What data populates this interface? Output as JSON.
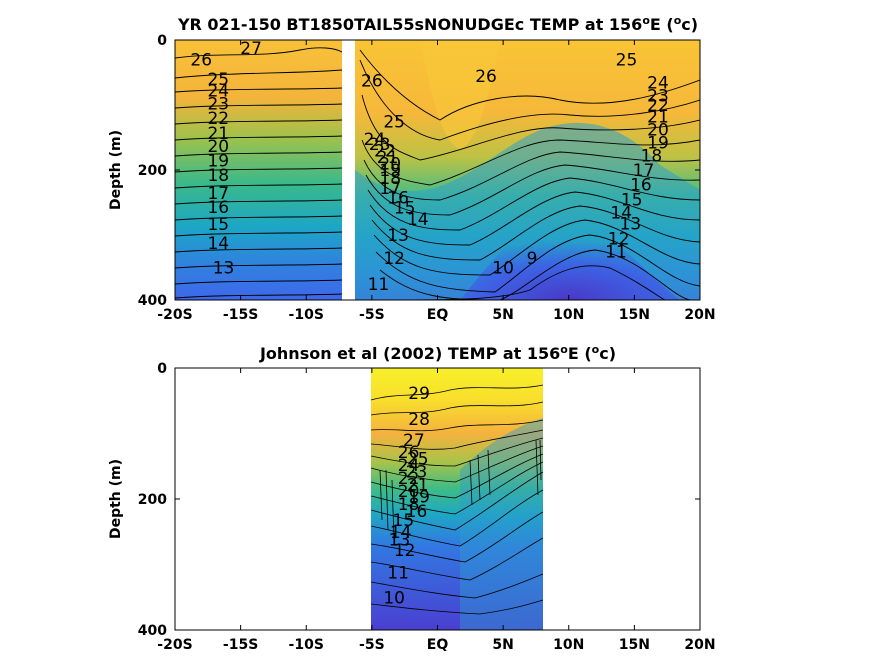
{
  "chart_data": [
    {
      "type": "heatmap",
      "subtype": "filled-contour",
      "title": "YR 021-150 BT1850TAIL55sNONUDGEc TEMP at 156°E (°c)",
      "title_parts": {
        "main": "YR 021-150 BT1850TAIL55sNONUDGEc TEMP at 156",
        "sup1": "o",
        "mid": "E (",
        "sup2": "o",
        "end": "c)"
      },
      "ylabel": "Depth (m)",
      "xlabel": "",
      "x_ticks": [
        -20,
        -15,
        -10,
        -5,
        0,
        5,
        10,
        15,
        20
      ],
      "x_tick_labels": [
        "-20S",
        "-15S",
        "-10S",
        "-5S",
        "EQ",
        "5N",
        "10N",
        "15N",
        "20N"
      ],
      "y_ticks": [
        0,
        200,
        400
      ],
      "y_tick_labels": [
        "0",
        "200",
        "400"
      ],
      "xlim": [
        -20,
        20
      ],
      "ylim": [
        400,
        0
      ],
      "y_reversed": true,
      "data_gap_x": [
        -7.8,
        -6.8
      ],
      "contour_interval": 1,
      "contour_labels": [
        {
          "text": "27",
          "x": -14.2,
          "y": 12
        },
        {
          "text": "26",
          "x": -18.0,
          "y": 30
        },
        {
          "text": "25",
          "x": -16.7,
          "y": 60
        },
        {
          "text": "24",
          "x": -16.7,
          "y": 78
        },
        {
          "text": "23",
          "x": -16.7,
          "y": 98
        },
        {
          "text": "22",
          "x": -16.7,
          "y": 120
        },
        {
          "text": "21",
          "x": -16.7,
          "y": 143
        },
        {
          "text": "20",
          "x": -16.7,
          "y": 163
        },
        {
          "text": "19",
          "x": -16.7,
          "y": 185
        },
        {
          "text": "18",
          "x": -16.7,
          "y": 208
        },
        {
          "text": "17",
          "x": -16.7,
          "y": 235
        },
        {
          "text": "16",
          "x": -16.7,
          "y": 257
        },
        {
          "text": "15",
          "x": -16.7,
          "y": 283
        },
        {
          "text": "14",
          "x": -16.7,
          "y": 312
        },
        {
          "text": "13",
          "x": -16.3,
          "y": 350
        },
        {
          "text": "26",
          "x": -5.0,
          "y": 62
        },
        {
          "text": "26",
          "x": 3.7,
          "y": 55
        },
        {
          "text": "25",
          "x": 14.4,
          "y": 30
        },
        {
          "text": "24",
          "x": 16.8,
          "y": 65
        },
        {
          "text": "23",
          "x": 16.8,
          "y": 85
        },
        {
          "text": "22",
          "x": 16.8,
          "y": 100
        },
        {
          "text": "21",
          "x": 16.8,
          "y": 118
        },
        {
          "text": "20",
          "x": 16.8,
          "y": 138
        },
        {
          "text": "19",
          "x": 16.8,
          "y": 158
        },
        {
          "text": "18",
          "x": 16.3,
          "y": 178
        },
        {
          "text": "17",
          "x": 15.7,
          "y": 200
        },
        {
          "text": "16",
          "x": 15.5,
          "y": 222
        },
        {
          "text": "15",
          "x": 14.8,
          "y": 245
        },
        {
          "text": "14",
          "x": 14.0,
          "y": 265
        },
        {
          "text": "13",
          "x": 14.7,
          "y": 282
        },
        {
          "text": "12",
          "x": 13.8,
          "y": 305
        },
        {
          "text": "11",
          "x": 13.6,
          "y": 325
        },
        {
          "text": "25",
          "x": -3.3,
          "y": 125
        },
        {
          "text": "24",
          "x": -4.8,
          "y": 152
        },
        {
          "text": "23",
          "x": -4.4,
          "y": 160
        },
        {
          "text": "22",
          "x": -4.0,
          "y": 170
        },
        {
          "text": "21",
          "x": -3.8,
          "y": 180
        },
        {
          "text": "20",
          "x": -3.6,
          "y": 190
        },
        {
          "text": "19",
          "x": -3.6,
          "y": 200
        },
        {
          "text": "18",
          "x": -3.6,
          "y": 212
        },
        {
          "text": "17",
          "x": -3.6,
          "y": 228
        },
        {
          "text": "16",
          "x": -3.0,
          "y": 242
        },
        {
          "text": "15",
          "x": -2.5,
          "y": 258
        },
        {
          "text": "14",
          "x": -1.5,
          "y": 275
        },
        {
          "text": "13",
          "x": -3.0,
          "y": 300
        },
        {
          "text": "12",
          "x": -3.3,
          "y": 335
        },
        {
          "text": "11",
          "x": -4.5,
          "y": 375
        },
        {
          "text": "10",
          "x": 5.0,
          "y": 350
        },
        {
          "text": "9",
          "x": 7.2,
          "y": 335
        }
      ],
      "temperature_range": [
        8,
        29
      ]
    },
    {
      "type": "heatmap",
      "subtype": "filled-contour",
      "title": "Johnson et al (2002) TEMP at 156°E (°c)",
      "title_parts": {
        "main": "Johnson et al (2002) TEMP at 156",
        "sup1": "o",
        "mid": "E (",
        "sup2": "o",
        "end": "c)"
      },
      "ylabel": "Depth (m)",
      "xlabel": "",
      "x_ticks": [
        -20,
        -15,
        -10,
        -5,
        0,
        5,
        10,
        15,
        20
      ],
      "x_tick_labels": [
        "-20S",
        "-15S",
        "-10S",
        "-5S",
        "EQ",
        "5N",
        "10N",
        "15N",
        "20N"
      ],
      "y_ticks": [
        0,
        200,
        400
      ],
      "y_tick_labels": [
        "0",
        "200",
        "400"
      ],
      "xlim": [
        -20,
        20
      ],
      "ylim": [
        400,
        0
      ],
      "y_reversed": true,
      "data_extent_x": [
        -5,
        8
      ],
      "contour_interval": 1,
      "contour_labels": [
        {
          "text": "29",
          "x": -1.4,
          "y": 38
        },
        {
          "text": "28",
          "x": -1.4,
          "y": 78
        },
        {
          "text": "27",
          "x": -1.8,
          "y": 110
        },
        {
          "text": "26",
          "x": -2.2,
          "y": 128
        },
        {
          "text": "25",
          "x": -1.5,
          "y": 138
        },
        {
          "text": "24",
          "x": -2.2,
          "y": 148
        },
        {
          "text": "23",
          "x": -1.6,
          "y": 158
        },
        {
          "text": "22",
          "x": -2.2,
          "y": 168
        },
        {
          "text": "21",
          "x": -1.5,
          "y": 178
        },
        {
          "text": "20",
          "x": -2.2,
          "y": 188
        },
        {
          "text": "19",
          "x": -1.4,
          "y": 196
        },
        {
          "text": "18",
          "x": -2.2,
          "y": 208
        },
        {
          "text": "16",
          "x": -1.6,
          "y": 218
        },
        {
          "text": "15",
          "x": -2.6,
          "y": 232
        },
        {
          "text": "14",
          "x": -2.8,
          "y": 250
        },
        {
          "text": "13",
          "x": -2.9,
          "y": 262
        },
        {
          "text": "12",
          "x": -2.5,
          "y": 278
        },
        {
          "text": "11",
          "x": -3.0,
          "y": 312
        },
        {
          "text": "10",
          "x": -3.3,
          "y": 350
        }
      ],
      "temperature_range": [
        8,
        30
      ]
    }
  ],
  "colors": {
    "warm": "#FFD42E",
    "orange": "#F6A43C",
    "green": "#33B884",
    "teal": "#1AA7C4",
    "blue": "#3D6FE8",
    "deep": "#4C38C8"
  }
}
